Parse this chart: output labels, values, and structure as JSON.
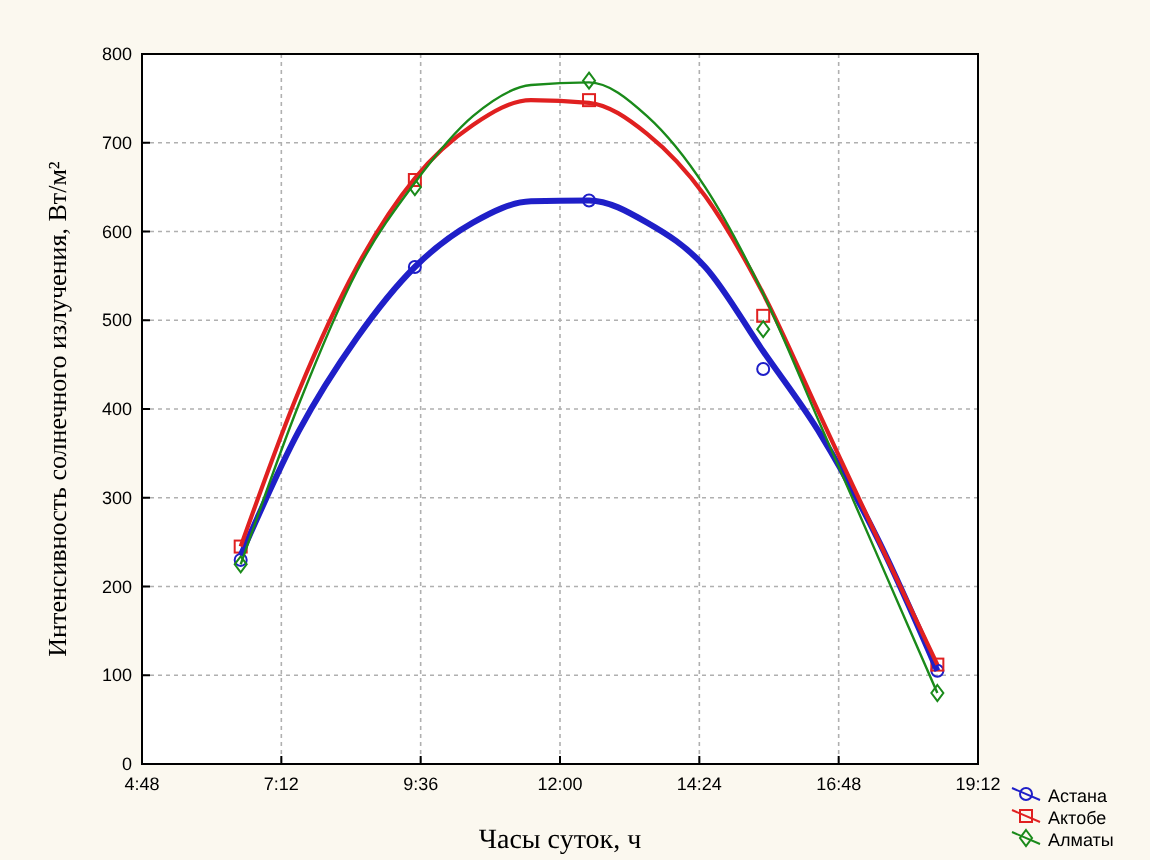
{
  "chart_data": {
    "type": "scatter",
    "xlabel": "Часы суток, ч",
    "ylabel": "Интенсивность солнечного излучения, Вт/м²",
    "xlim": [
      4.8,
      19.2
    ],
    "ylim": [
      0,
      800
    ],
    "xticks": [
      {
        "value": 4.8,
        "label": "4:48"
      },
      {
        "value": 7.2,
        "label": "7:12"
      },
      {
        "value": 9.6,
        "label": "9:36"
      },
      {
        "value": 12,
        "label": "12:00"
      },
      {
        "value": 14.4,
        "label": "14:24"
      },
      {
        "value": 16.8,
        "label": "16:48"
      },
      {
        "value": 19.2,
        "label": "19:12"
      }
    ],
    "yticks": [
      0,
      100,
      200,
      300,
      400,
      500,
      600,
      700,
      800
    ],
    "grid": true,
    "legend": "bottom right",
    "series": [
      {
        "name": "Астана",
        "marker": "circle",
        "color": "#1f1fc8",
        "x": [
          6.5,
          9.5,
          12.5,
          15.5,
          18.5
        ],
        "values": [
          230,
          560,
          635,
          445,
          105
        ]
      },
      {
        "name": "Актобе",
        "marker": "square",
        "color": "#e02020",
        "x": [
          6.5,
          9.5,
          12.5,
          15.5,
          18.5
        ],
        "values": [
          245,
          658,
          748,
          505,
          112
        ]
      },
      {
        "name": "Алматы",
        "marker": "diamond",
        "color": "#1a8a1a",
        "x": [
          6.5,
          9.5,
          12.5,
          15.5,
          18.5
        ],
        "values": [
          225,
          650,
          770,
          490,
          80
        ]
      },
      {
        "type": "line",
        "marker": "none",
        "color": "#1f1fc8",
        "x": [
          6.5,
          7.5,
          8.5,
          9.5,
          10.5,
          11.5,
          12.5,
          13.5,
          14.5,
          15.5,
          16.5,
          17.5,
          18.5
        ],
        "values": [
          235,
          375,
          480,
          560,
          610,
          634,
          635,
          610,
          560,
          465,
          370,
          250,
          105
        ]
      },
      {
        "type": "line",
        "marker": "none",
        "color": "#e02020",
        "x": [
          6.5,
          7.5,
          8.5,
          9.5,
          10.5,
          11.5,
          12.5,
          13.5,
          14.5,
          15.5,
          16.5,
          17.5,
          18.5
        ],
        "values": [
          245,
          420,
          560,
          660,
          720,
          748,
          745,
          710,
          640,
          530,
          390,
          250,
          112
        ]
      },
      {
        "type": "line",
        "marker": "none",
        "color": "#1a8a1a",
        "x": [
          6.5,
          7.5,
          8.5,
          9.5,
          10.5,
          11.5,
          12.5,
          13.5,
          14.5,
          15.5,
          16.5,
          17.5,
          18.5
        ],
        "values": [
          225,
          405,
          555,
          655,
          730,
          765,
          768,
          730,
          650,
          530,
          380,
          230,
          80
        ]
      }
    ]
  }
}
